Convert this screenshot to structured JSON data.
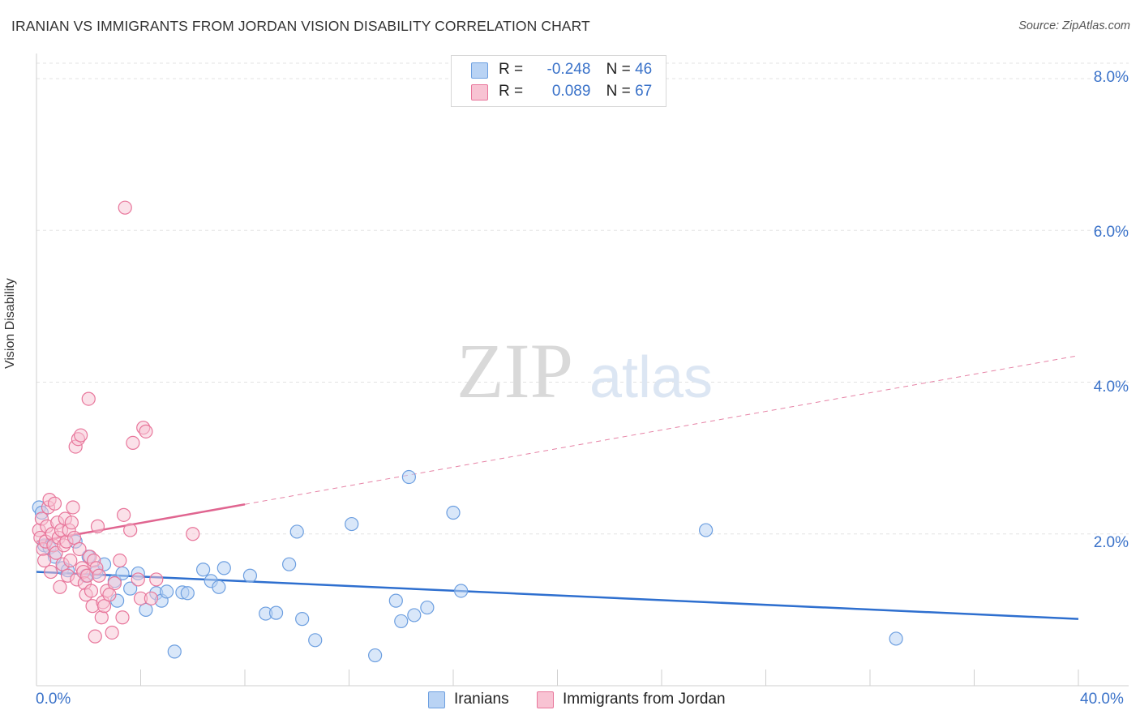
{
  "header": {
    "title": "IRANIAN VS IMMIGRANTS FROM JORDAN VISION DISABILITY CORRELATION CHART",
    "source": "Source: ZipAtlas.com"
  },
  "watermark": {
    "zip": "ZIP",
    "atlas": "atlas"
  },
  "legend": {
    "r_label": "R =",
    "n_label": "N =",
    "items": [
      {
        "name": "Iranians",
        "r": "-0.248",
        "n": "46",
        "color": "#6d9fe0",
        "fill": "#b9d3f4"
      },
      {
        "name": "Immigrants from Jordan",
        "r": "0.089",
        "n": "67",
        "color": "#e8769b",
        "fill": "#f8c3d3"
      }
    ]
  },
  "chart_data": {
    "type": "scatter",
    "title": "IRANIAN VS IMMIGRANTS FROM JORDAN VISION DISABILITY CORRELATION CHART",
    "xlabel": "",
    "ylabel": "Vision Disability",
    "xlim": [
      0,
      40
    ],
    "ylim": [
      0,
      8.3
    ],
    "x_tick_labels": [
      "0.0%",
      "40.0%"
    ],
    "y_ticks": [
      2,
      4,
      6,
      8
    ],
    "y_tick_labels": [
      "2.0%",
      "4.0%",
      "6.0%",
      "8.0%"
    ],
    "grid": true,
    "series": [
      {
        "name": "Iranians",
        "color": "#6d9fe0",
        "trend": {
          "x0": 0,
          "y0": 1.5,
          "x1": 40,
          "y1": 0.88,
          "dashed_from": null
        },
        "points": [
          [
            0.1,
            2.35
          ],
          [
            0.2,
            2.28
          ],
          [
            0.3,
            1.85
          ],
          [
            0.5,
            1.82
          ],
          [
            0.7,
            1.7
          ],
          [
            1.0,
            1.55
          ],
          [
            1.2,
            1.52
          ],
          [
            1.5,
            1.9
          ],
          [
            1.9,
            1.45
          ],
          [
            2.0,
            1.7
          ],
          [
            2.3,
            1.5
          ],
          [
            2.6,
            1.6
          ],
          [
            3.0,
            1.38
          ],
          [
            3.1,
            1.12
          ],
          [
            3.3,
            1.48
          ],
          [
            3.6,
            1.28
          ],
          [
            3.9,
            1.48
          ],
          [
            4.2,
            1.0
          ],
          [
            4.6,
            1.22
          ],
          [
            4.8,
            1.12
          ],
          [
            5.0,
            1.24
          ],
          [
            5.3,
            0.45
          ],
          [
            5.6,
            1.23
          ],
          [
            5.8,
            1.22
          ],
          [
            6.4,
            1.53
          ],
          [
            6.7,
            1.38
          ],
          [
            7.0,
            1.3
          ],
          [
            7.2,
            1.55
          ],
          [
            8.2,
            1.45
          ],
          [
            8.8,
            0.95
          ],
          [
            9.2,
            0.96
          ],
          [
            9.7,
            1.6
          ],
          [
            10.0,
            2.03
          ],
          [
            10.2,
            0.88
          ],
          [
            10.7,
            0.6
          ],
          [
            12.1,
            2.13
          ],
          [
            13.0,
            0.4
          ],
          [
            13.8,
            1.12
          ],
          [
            14.0,
            0.85
          ],
          [
            14.3,
            2.75
          ],
          [
            14.5,
            0.93
          ],
          [
            15.0,
            1.03
          ],
          [
            16.0,
            2.28
          ],
          [
            16.3,
            1.25
          ],
          [
            25.7,
            2.05
          ],
          [
            33.0,
            0.62
          ]
        ]
      },
      {
        "name": "Immigrants from Jordan",
        "color": "#e8769b",
        "trend": {
          "x0": 0,
          "y0": 1.9,
          "x1": 40,
          "y1": 4.35,
          "solid_until": 8.0
        },
        "points": [
          [
            0.1,
            2.05
          ],
          [
            0.15,
            1.95
          ],
          [
            0.2,
            2.2
          ],
          [
            0.25,
            1.8
          ],
          [
            0.3,
            1.65
          ],
          [
            0.35,
            1.9
          ],
          [
            0.4,
            2.1
          ],
          [
            0.45,
            2.35
          ],
          [
            0.5,
            2.45
          ],
          [
            0.55,
            1.5
          ],
          [
            0.6,
            2.0
          ],
          [
            0.65,
            1.85
          ],
          [
            0.7,
            2.4
          ],
          [
            0.75,
            1.75
          ],
          [
            0.8,
            2.15
          ],
          [
            0.85,
            1.95
          ],
          [
            0.9,
            1.3
          ],
          [
            0.95,
            2.05
          ],
          [
            1.0,
            1.6
          ],
          [
            1.05,
            1.85
          ],
          [
            1.1,
            2.2
          ],
          [
            1.15,
            1.9
          ],
          [
            1.2,
            1.45
          ],
          [
            1.25,
            2.05
          ],
          [
            1.3,
            1.65
          ],
          [
            1.35,
            2.15
          ],
          [
            1.4,
            2.35
          ],
          [
            1.45,
            1.95
          ],
          [
            1.5,
            3.15
          ],
          [
            1.55,
            1.4
          ],
          [
            1.6,
            3.25
          ],
          [
            1.65,
            1.8
          ],
          [
            1.7,
            3.3
          ],
          [
            1.75,
            1.55
          ],
          [
            1.8,
            1.5
          ],
          [
            1.85,
            1.35
          ],
          [
            1.9,
            1.2
          ],
          [
            1.95,
            1.45
          ],
          [
            2.0,
            3.78
          ],
          [
            2.05,
            1.7
          ],
          [
            2.1,
            1.25
          ],
          [
            2.15,
            1.05
          ],
          [
            2.2,
            1.65
          ],
          [
            2.25,
            0.65
          ],
          [
            2.3,
            1.55
          ],
          [
            2.35,
            2.1
          ],
          [
            2.4,
            1.45
          ],
          [
            2.5,
            0.9
          ],
          [
            2.55,
            1.1
          ],
          [
            2.6,
            1.05
          ],
          [
            2.7,
            1.25
          ],
          [
            2.8,
            1.2
          ],
          [
            2.9,
            0.7
          ],
          [
            3.0,
            1.35
          ],
          [
            3.2,
            1.65
          ],
          [
            3.3,
            0.9
          ],
          [
            3.35,
            2.25
          ],
          [
            3.4,
            6.3
          ],
          [
            3.6,
            2.05
          ],
          [
            3.7,
            3.2
          ],
          [
            3.9,
            1.4
          ],
          [
            4.0,
            1.15
          ],
          [
            4.1,
            3.4
          ],
          [
            4.2,
            3.35
          ],
          [
            4.4,
            1.15
          ],
          [
            4.6,
            1.4
          ],
          [
            6.0,
            2.0
          ]
        ]
      }
    ]
  }
}
